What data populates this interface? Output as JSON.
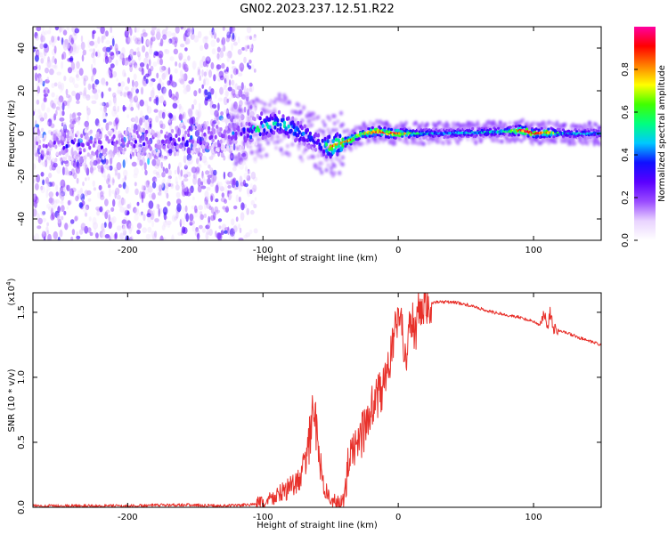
{
  "figure": {
    "title": "GN02.2023.237.12.51.R22"
  },
  "chart_data": [
    {
      "type": "heatmap",
      "name": "spectrogram",
      "xlabel": "Height of straight line (km)",
      "ylabel": "Frequency (Hz)",
      "xlim": [
        -270,
        150
      ],
      "ylim": [
        -50,
        50
      ],
      "xticks": [
        -200,
        -100,
        0,
        100
      ],
      "yticks": [
        -40,
        -20,
        0,
        20,
        40
      ],
      "colorbar": {
        "label": "Normalized spectral amplitude",
        "range": [
          0.0,
          1.0
        ],
        "ticks": [
          "0.0",
          "0.2",
          "0.4",
          "0.6",
          "0.8"
        ],
        "tick_values": [
          0.0,
          0.2,
          0.4,
          0.6,
          0.8
        ],
        "colors": [
          "#ffffff",
          "#e9d3ff",
          "#9a4bff",
          "#5a00ff",
          "#1010ff",
          "#00c8ff",
          "#00ff80",
          "#40ff00",
          "#ffff00",
          "#ff8000",
          "#ff0000",
          "#ff00a0"
        ]
      },
      "ridge": {
        "x": [
          -270,
          -240,
          -200,
          -170,
          -150,
          -130,
          -115,
          -105,
          -95,
          -88,
          -80,
          -72,
          -65,
          -60,
          -55,
          -50,
          -45,
          -40,
          -35,
          -30,
          -25,
          -20,
          -15,
          -10,
          -5,
          0,
          10,
          30,
          60,
          80,
          90,
          95,
          100,
          110,
          120,
          150
        ],
        "freq": [
          -5,
          -6,
          -4,
          -3,
          -2,
          -1,
          0,
          2,
          4,
          5,
          3,
          0,
          -2,
          -4,
          -6,
          -6,
          -5,
          -4,
          -3,
          -1,
          0,
          0.5,
          1,
          0.5,
          0,
          0,
          0,
          0,
          0.5,
          1,
          1.5,
          1,
          0,
          0.5,
          0,
          0
        ],
        "amplitude": [
          0.15,
          0.35,
          0.3,
          0.35,
          0.4,
          0.3,
          0.45,
          0.5,
          0.65,
          0.55,
          0.6,
          0.5,
          0.45,
          0.4,
          0.55,
          0.9,
          0.8,
          0.85,
          0.9,
          0.75,
          0.8,
          0.9,
          0.95,
          0.85,
          0.9,
          0.95,
          0.6,
          0.45,
          0.5,
          0.55,
          0.95,
          1.0,
          0.9,
          0.85,
          0.5,
          0.45
        ]
      }
    },
    {
      "type": "line",
      "name": "snr",
      "xlabel": "Height of straight line (km)",
      "ylabel": "SNR (10 * v/v)",
      "y_scale_label": "(x10",
      "y_scale_exp": "4",
      "y_scale_close": ")",
      "xlim": [
        -270,
        150
      ],
      "ylim": [
        0.0,
        1.65
      ],
      "xticks": [
        -200,
        -100,
        0,
        100
      ],
      "yticks": [
        "0.0",
        "0.5",
        "1.0",
        "1.5"
      ],
      "ytick_values": [
        0.0,
        0.5,
        1.0,
        1.5
      ],
      "color": "#e8302a",
      "series": [
        {
          "name": "SNR",
          "x": [
            -270,
            -240,
            -200,
            -160,
            -130,
            -110,
            -100,
            -95,
            -85,
            -75,
            -70,
            -65,
            -62,
            -60,
            -57,
            -55,
            -50,
            -45,
            -40,
            -37,
            -35,
            -32,
            -30,
            -25,
            -20,
            -15,
            -10,
            -8,
            -5,
            -2,
            0,
            2,
            5,
            8,
            10,
            13,
            15,
            18,
            20,
            25,
            30,
            40,
            50,
            60,
            70,
            80,
            90,
            100,
            105,
            108,
            110,
            112,
            115,
            120,
            130,
            140,
            150
          ],
          "values": [
            0.01,
            0.01,
            0.01,
            0.02,
            0.01,
            0.02,
            0.03,
            0.06,
            0.12,
            0.18,
            0.3,
            0.55,
            0.75,
            0.55,
            0.3,
            0.15,
            0.06,
            0.03,
            0.05,
            0.3,
            0.55,
            0.4,
            0.5,
            0.6,
            0.75,
            0.85,
            0.95,
            1.05,
            1.2,
            1.35,
            1.55,
            1.42,
            1.15,
            1.35,
            1.45,
            1.3,
            1.5,
            1.45,
            1.55,
            1.57,
            1.58,
            1.58,
            1.56,
            1.53,
            1.5,
            1.48,
            1.46,
            1.43,
            1.4,
            1.5,
            1.35,
            1.5,
            1.38,
            1.36,
            1.32,
            1.28,
            1.25
          ]
        }
      ]
    }
  ]
}
